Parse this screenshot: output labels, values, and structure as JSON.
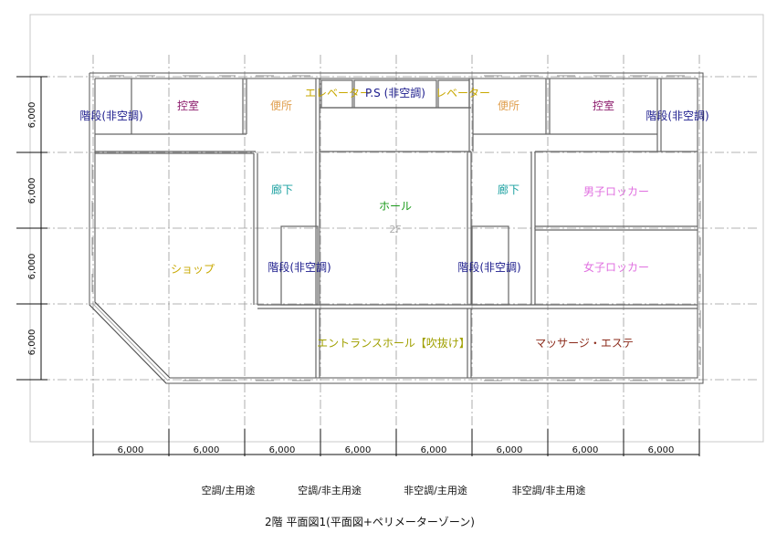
{
  "dimensions": {
    "row": "6,000",
    "col": "6,000"
  },
  "rooms": {
    "stair_nw": {
      "label": "階段(非空調)",
      "color": "#1a1a8c"
    },
    "hikae_w": {
      "label": "控室",
      "color": "#8b1a6b"
    },
    "wc_w": {
      "label": "便所",
      "color": "#e0a050"
    },
    "elevator_w": {
      "label": "エレベーター",
      "color": "#c8a800"
    },
    "ps": {
      "label": "P.S (非空調)",
      "color": "#1a1a8c"
    },
    "elevator_e": {
      "label": "レベーター",
      "color": "#c8a800"
    },
    "wc_e": {
      "label": "便所",
      "color": "#e0a050"
    },
    "hikae_e": {
      "label": "控室",
      "color": "#8b1a6b"
    },
    "stair_ne": {
      "label": "階段(非空調)",
      "color": "#1a1a8c"
    },
    "corridor_w": {
      "label": "廊下",
      "color": "#1aa0a0"
    },
    "hall": {
      "label": "ホール",
      "color": "#1a9a1a"
    },
    "floor_tag": {
      "label": "2F",
      "color": "#b0b0b0"
    },
    "corridor_e": {
      "label": "廊下",
      "color": "#1aa0a0"
    },
    "locker_m": {
      "label": "男子ロッカー",
      "color": "#e070e0"
    },
    "locker_f": {
      "label": "女子ロッカー",
      "color": "#e070e0"
    },
    "shop": {
      "label": "ショップ",
      "color": "#c8a800"
    },
    "stair_cw": {
      "label": "階段(非空調)",
      "color": "#1a1a8c"
    },
    "stair_ce": {
      "label": "階段(非空調)",
      "color": "#1a1a8c"
    },
    "entrance": {
      "label": "エントランスホール【吹抜け】",
      "color": "#a0a000"
    },
    "massage": {
      "label": "マッサージ・エステ",
      "color": "#8b2a1a"
    }
  },
  "legend": [
    {
      "label": "空調/主用途"
    },
    {
      "label": "空調/非主用途"
    },
    {
      "label": "非空調/主用途"
    },
    {
      "label": "非空調/非主用途"
    }
  ],
  "caption": "2階 平面図1(平面図+ペリメーターゾーン)"
}
